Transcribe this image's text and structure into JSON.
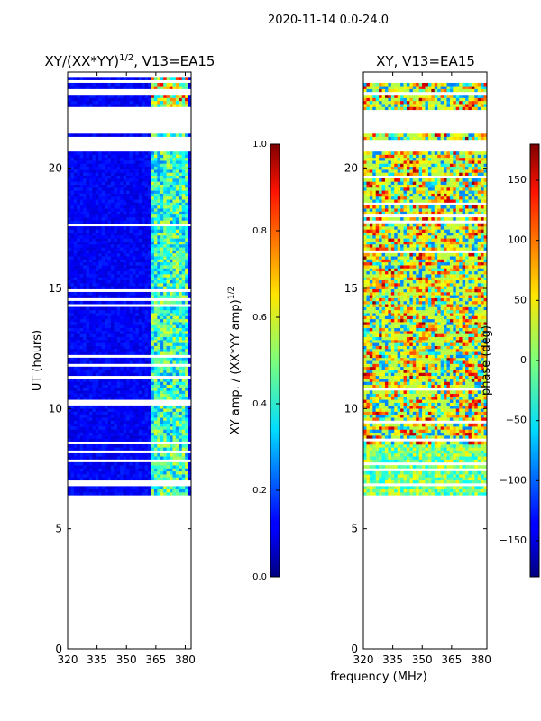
{
  "figure": {
    "suptitle": "2020-11-14 0.0-24.0",
    "xlabel": "frequency (MHz)"
  },
  "chart_data": [
    {
      "type": "heatmap",
      "title": "XY/(XX*YY)",
      "title_exponent": "1/2",
      "title_suffix": ", V13=EA15",
      "xlabel": "",
      "ylabel": "UT (hours)",
      "xlim": [
        320,
        383
      ],
      "ylim": [
        0,
        24
      ],
      "xticks": [
        320,
        335,
        350,
        365,
        380
      ],
      "yticks": [
        0,
        5,
        10,
        15,
        20
      ],
      "data_ut_range": [
        6.4,
        23.8
      ],
      "gap_bands_ut": [
        [
          21.4,
          22.4
        ],
        [
          20.6,
          21.1
        ]
      ],
      "colorbar": {
        "label": "XY amp. / (XX*YY amp)",
        "label_exponent": "1/2",
        "range": [
          0.0,
          1.0
        ],
        "ticks": [
          "0.0",
          "0.2",
          "0.4",
          "0.6",
          "0.8",
          "1.0"
        ],
        "colormap": "jet"
      }
    },
    {
      "type": "heatmap",
      "title": "XY, V13=EA15",
      "xlabel": "frequency (MHz)",
      "ylabel": "",
      "xlim": [
        320,
        383
      ],
      "ylim": [
        0,
        24
      ],
      "xticks": [
        320,
        335,
        350,
        365,
        380
      ],
      "yticks": [
        0,
        5,
        10,
        15,
        20
      ],
      "data_ut_range": [
        6.4,
        23.8
      ],
      "gap_bands_ut": [
        [
          21.4,
          22.4
        ],
        [
          20.6,
          21.1
        ]
      ],
      "colorbar": {
        "label": "phase (deg)",
        "range": [
          -180,
          180
        ],
        "ticks": [
          "−150",
          "−100",
          "−50",
          "0",
          "50",
          "100",
          "150"
        ],
        "tick_values": [
          -150,
          -100,
          -50,
          0,
          50,
          100,
          150
        ],
        "colormap": "jet"
      }
    }
  ]
}
